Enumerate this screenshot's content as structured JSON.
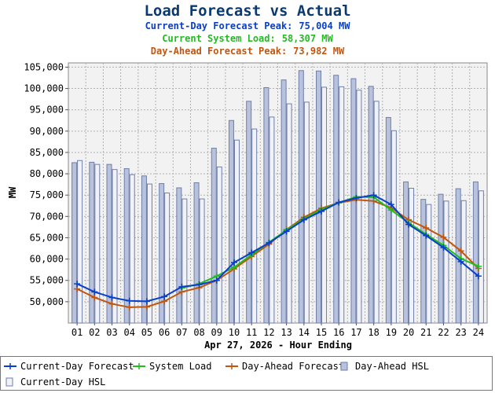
{
  "header": {
    "title": "Load Forecast vs Actual",
    "line1_label": "Current-Day Forecast Peak:",
    "line1_value": "75,004 MW",
    "line2_label": "Current System Load:",
    "line2_value": "58,307 MW",
    "line3_label": "Day-Ahead Forecast Peak:",
    "line3_value": "73,982 MW"
  },
  "colors": {
    "title": "#0b3a6e",
    "current_day_forecast": "#0a3fc8",
    "system_load": "#22bb22",
    "day_ahead_forecast": "#c0560f",
    "day_ahead_hsl": "#b8c2dc",
    "current_day_hsl": "#f0f2f8",
    "bar_stroke": "#6f7fa8",
    "plot_bg": "#f2f2f2",
    "grid": "#b0b0b0"
  },
  "legend": {
    "items": [
      {
        "label": "Current-Day Forecast",
        "kind": "line",
        "color": "#0a3fc8"
      },
      {
        "label": "System Load",
        "kind": "line",
        "color": "#22bb22"
      },
      {
        "label": "Day-Ahead Forecast",
        "kind": "line",
        "color": "#c0560f"
      },
      {
        "label": "Day-Ahead HSL",
        "kind": "bar",
        "color": "#b8c2dc"
      },
      {
        "label": "Current-Day HSL",
        "kind": "bar",
        "color": "#f0f2f8"
      }
    ]
  },
  "chart_data": {
    "type": "bar",
    "xlabel": "Apr 27, 2026 - Hour Ending",
    "ylabel": "MW",
    "ylim": [
      45000,
      106000
    ],
    "yticks": [
      50000,
      55000,
      60000,
      65000,
      70000,
      75000,
      80000,
      85000,
      90000,
      95000,
      100000,
      105000
    ],
    "ytick_labels": [
      "50,000",
      "55,000",
      "60,000",
      "65,000",
      "70,000",
      "75,000",
      "80,000",
      "85,000",
      "90,000",
      "95,000",
      "100,000",
      "105,000"
    ],
    "grid": true,
    "legend_position": "bottom",
    "categories": [
      "01",
      "02",
      "03",
      "04",
      "05",
      "06",
      "07",
      "08",
      "09",
      "10",
      "11",
      "12",
      "13",
      "14",
      "15",
      "16",
      "17",
      "18",
      "19",
      "20",
      "21",
      "22",
      "23",
      "24"
    ],
    "series": [
      {
        "name": "Day-Ahead HSL",
        "kind": "bar",
        "values": [
          82600,
          82700,
          82200,
          81200,
          79500,
          77700,
          76700,
          77900,
          86000,
          92500,
          97000,
          100200,
          102000,
          104200,
          104100,
          103100,
          102300,
          100500,
          93200,
          78100,
          74000,
          75200,
          76500,
          78100
        ]
      },
      {
        "name": "Current-Day HSL",
        "kind": "bar",
        "values": [
          83100,
          82200,
          81000,
          79800,
          77600,
          75500,
          74100,
          74100,
          81600,
          87900,
          90500,
          93300,
          96400,
          96800,
          100300,
          100400,
          99600,
          97000,
          90100,
          76600,
          72800,
          73600,
          73700,
          76000
        ]
      },
      {
        "name": "Current-Day Forecast",
        "kind": "line",
        "values": [
          54200,
          52300,
          51000,
          50200,
          50100,
          51200,
          53500,
          54000,
          55000,
          59200,
          61500,
          63800,
          66500,
          69200,
          71200,
          73300,
          74300,
          75000,
          72800,
          68100,
          65500,
          62700,
          59400,
          56000
        ]
      },
      {
        "name": "System Load",
        "kind": "line",
        "values": [
          null,
          null,
          null,
          null,
          null,
          null,
          53200,
          54200,
          56000,
          58100,
          61000,
          63900,
          66800,
          69400,
          71600,
          73200,
          74600,
          74500,
          71500,
          68500,
          65800,
          63200,
          60100,
          58300
        ]
      },
      {
        "name": "Day-Ahead Forecast",
        "kind": "line",
        "values": [
          53000,
          51000,
          49500,
          48700,
          48800,
          50100,
          52300,
          53300,
          55000,
          57700,
          60600,
          63500,
          66900,
          69800,
          71900,
          73200,
          73900,
          73600,
          72000,
          69200,
          67300,
          65100,
          61900,
          57800
        ]
      }
    ]
  }
}
